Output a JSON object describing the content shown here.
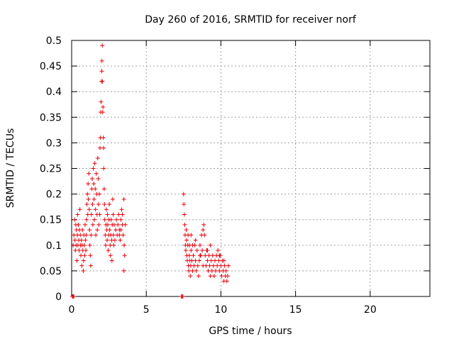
{
  "chart_data": {
    "type": "scatter",
    "title": "Day 260 of 2016, SRMTID for receiver norf",
    "xlabel": "GPS time / hours",
    "ylabel": "SRMTID / TECUs",
    "xlim": [
      0,
      24
    ],
    "ylim": [
      0,
      0.5
    ],
    "xticks": [
      0,
      5,
      10,
      15,
      20
    ],
    "xtick_labels": [
      "0",
      "5",
      "10",
      "15",
      "20"
    ],
    "yticks": [
      0,
      0.05,
      0.1,
      0.15,
      0.2,
      0.25,
      0.3,
      0.35,
      0.4,
      0.45,
      0.5
    ],
    "ytick_labels": [
      "0",
      "0.05",
      "0.1",
      "0.15",
      "0.2",
      "0.25",
      "0.3",
      "0.35",
      "0.4",
      "0.45",
      "0.5"
    ],
    "grid": true,
    "marker": "+",
    "series": [
      {
        "color": "#e8000b",
        "points": [
          [
            0.05,
            0.0
          ],
          [
            0.1,
            0.0
          ],
          [
            0.15,
            0.0
          ],
          [
            0.1,
            0.1
          ],
          [
            0.15,
            0.12
          ],
          [
            0.2,
            0.15
          ],
          [
            0.22,
            0.11
          ],
          [
            0.25,
            0.09
          ],
          [
            0.28,
            0.14
          ],
          [
            0.3,
            0.1
          ],
          [
            0.32,
            0.13
          ],
          [
            0.35,
            0.07
          ],
          [
            0.38,
            0.12
          ],
          [
            0.4,
            0.16
          ],
          [
            0.42,
            0.1
          ],
          [
            0.45,
            0.14
          ],
          [
            0.48,
            0.11
          ],
          [
            0.5,
            0.09
          ],
          [
            0.52,
            0.13
          ],
          [
            0.55,
            0.17
          ],
          [
            0.58,
            0.12
          ],
          [
            0.6,
            0.1
          ],
          [
            0.62,
            0.08
          ],
          [
            0.65,
            0.11
          ],
          [
            0.68,
            0.06
          ],
          [
            0.7,
            0.1
          ],
          [
            0.72,
            0.13
          ],
          [
            0.75,
            0.09
          ],
          [
            0.78,
            0.05
          ],
          [
            0.8,
            0.07
          ],
          [
            0.82,
            0.12
          ],
          [
            0.85,
            0.1
          ],
          [
            0.88,
            0.08
          ],
          [
            0.9,
            0.14
          ],
          [
            0.92,
            0.11
          ],
          [
            0.95,
            0.09
          ],
          [
            0.98,
            0.12
          ],
          [
            1.0,
            0.15
          ],
          [
            1.02,
            0.18
          ],
          [
            1.05,
            0.2
          ],
          [
            1.08,
            0.16
          ],
          [
            1.1,
            0.22
          ],
          [
            1.12,
            0.19
          ],
          [
            1.15,
            0.24
          ],
          [
            1.18,
            0.17
          ],
          [
            1.2,
            0.13
          ],
          [
            1.22,
            0.1
          ],
          [
            1.25,
            0.08
          ],
          [
            1.28,
            0.06
          ],
          [
            1.3,
            0.12
          ],
          [
            1.32,
            0.16
          ],
          [
            1.35,
            0.21
          ],
          [
            1.38,
            0.23
          ],
          [
            1.4,
            0.18
          ],
          [
            1.42,
            0.14
          ],
          [
            1.45,
            0.25
          ],
          [
            1.48,
            0.22
          ],
          [
            1.5,
            0.19
          ],
          [
            1.52,
            0.15
          ],
          [
            1.55,
            0.26
          ],
          [
            1.58,
            0.21
          ],
          [
            1.6,
            0.17
          ],
          [
            1.62,
            0.12
          ],
          [
            1.65,
            0.24
          ],
          [
            1.68,
            0.2
          ],
          [
            1.7,
            0.16
          ],
          [
            1.72,
            0.13
          ],
          [
            1.75,
            0.27
          ],
          [
            1.78,
            0.23
          ],
          [
            1.8,
            0.18
          ],
          [
            1.82,
            0.14
          ],
          [
            1.85,
            0.2
          ],
          [
            1.88,
            0.16
          ],
          [
            1.9,
            0.29
          ],
          [
            1.92,
            0.31
          ],
          [
            1.95,
            0.36
          ],
          [
            1.97,
            0.38
          ],
          [
            2.0,
            0.42
          ],
          [
            2.02,
            0.44
          ],
          [
            2.03,
            0.46
          ],
          [
            2.05,
            0.49
          ],
          [
            2.06,
            0.42
          ],
          [
            2.08,
            0.36
          ],
          [
            2.1,
            0.37
          ],
          [
            2.12,
            0.31
          ],
          [
            2.14,
            0.29
          ],
          [
            2.15,
            0.25
          ],
          [
            2.18,
            0.21
          ],
          [
            2.2,
            0.18
          ],
          [
            2.22,
            0.15
          ],
          [
            2.25,
            0.12
          ],
          [
            2.28,
            0.1
          ],
          [
            2.3,
            0.14
          ],
          [
            2.32,
            0.17
          ],
          [
            2.35,
            0.13
          ],
          [
            2.38,
            0.11
          ],
          [
            2.4,
            0.16
          ],
          [
            2.42,
            0.14
          ],
          [
            2.45,
            0.09
          ],
          [
            2.48,
            0.12
          ],
          [
            2.5,
            0.15
          ],
          [
            2.52,
            0.18
          ],
          [
            2.55,
            0.13
          ],
          [
            2.58,
            0.1
          ],
          [
            2.6,
            0.08
          ],
          [
            2.62,
            0.12
          ],
          [
            2.65,
            0.15
          ],
          [
            2.68,
            0.11
          ],
          [
            2.7,
            0.07
          ],
          [
            2.72,
            0.14
          ],
          [
            2.75,
            0.19
          ],
          [
            2.78,
            0.16
          ],
          [
            2.8,
            0.12
          ],
          [
            2.82,
            0.1
          ],
          [
            2.85,
            0.14
          ],
          [
            2.9,
            0.11
          ],
          [
            2.95,
            0.13
          ],
          [
            3.0,
            0.15
          ],
          [
            3.05,
            0.12
          ],
          [
            3.1,
            0.14
          ],
          [
            3.15,
            0.16
          ],
          [
            3.2,
            0.13
          ],
          [
            3.25,
            0.11
          ],
          [
            3.3,
            0.15
          ],
          [
            3.35,
            0.17
          ],
          [
            3.4,
            0.14
          ],
          [
            3.45,
            0.12
          ],
          [
            3.5,
            0.19
          ],
          [
            3.52,
            0.1
          ],
          [
            3.55,
            0.08
          ],
          [
            3.5,
            0.05
          ],
          [
            3.6,
            0.14
          ],
          [
            3.4,
            0.16
          ],
          [
            3.3,
            0.13
          ],
          [
            3.2,
            0.12
          ],
          [
            7.35,
            0.0
          ],
          [
            7.4,
            0.0
          ],
          [
            7.45,
            0.0
          ],
          [
            7.5,
            0.2
          ],
          [
            7.52,
            0.18
          ],
          [
            7.55,
            0.16
          ],
          [
            7.58,
            0.14
          ],
          [
            7.6,
            0.12
          ],
          [
            7.62,
            0.1
          ],
          [
            7.65,
            0.09
          ],
          [
            7.68,
            0.13
          ],
          [
            7.7,
            0.11
          ],
          [
            7.72,
            0.08
          ],
          [
            7.75,
            0.07
          ],
          [
            7.78,
            0.1
          ],
          [
            7.8,
            0.12
          ],
          [
            7.82,
            0.06
          ],
          [
            7.85,
            0.05
          ],
          [
            7.88,
            0.08
          ],
          [
            7.9,
            0.1
          ],
          [
            7.92,
            0.07
          ],
          [
            7.95,
            0.04
          ],
          [
            7.98,
            0.06
          ],
          [
            8.0,
            0.09
          ],
          [
            8.05,
            0.07
          ],
          [
            8.1,
            0.05
          ],
          [
            8.15,
            0.08
          ],
          [
            8.2,
            0.06
          ],
          [
            8.25,
            0.1
          ],
          [
            8.3,
            0.07
          ],
          [
            8.35,
            0.05
          ],
          [
            8.4,
            0.09
          ],
          [
            8.45,
            0.06
          ],
          [
            8.5,
            0.04
          ],
          [
            8.55,
            0.07
          ],
          [
            8.6,
            0.1
          ],
          [
            8.65,
            0.08
          ],
          [
            8.7,
            0.12
          ],
          [
            8.75,
            0.09
          ],
          [
            8.8,
            0.06
          ],
          [
            8.85,
            0.14
          ],
          [
            8.9,
            0.12
          ],
          [
            8.95,
            0.08
          ],
          [
            9.0,
            0.06
          ],
          [
            9.05,
            0.09
          ],
          [
            9.1,
            0.07
          ],
          [
            9.15,
            0.05
          ],
          [
            9.2,
            0.08
          ],
          [
            9.25,
            0.06
          ],
          [
            9.3,
            0.04
          ],
          [
            9.35,
            0.07
          ],
          [
            9.4,
            0.05
          ],
          [
            9.45,
            0.08
          ],
          [
            9.5,
            0.06
          ],
          [
            9.55,
            0.04
          ],
          [
            9.6,
            0.07
          ],
          [
            9.65,
            0.05
          ],
          [
            9.7,
            0.08
          ],
          [
            9.75,
            0.06
          ],
          [
            9.8,
            0.09
          ],
          [
            9.85,
            0.07
          ],
          [
            9.9,
            0.05
          ],
          [
            9.95,
            0.08
          ],
          [
            10.0,
            0.06
          ],
          [
            10.05,
            0.04
          ],
          [
            10.1,
            0.07
          ],
          [
            10.15,
            0.05
          ],
          [
            10.2,
            0.03
          ],
          [
            10.25,
            0.06
          ],
          [
            10.3,
            0.04
          ],
          [
            10.35,
            0.05
          ],
          [
            10.4,
            0.03
          ],
          [
            10.45,
            0.04
          ],
          [
            10.5,
            0.06
          ],
          [
            8.0,
            0.12
          ],
          [
            8.1,
            0.1
          ],
          [
            8.3,
            0.11
          ],
          [
            8.6,
            0.08
          ],
          [
            8.8,
            0.13
          ],
          [
            9.1,
            0.09
          ],
          [
            9.3,
            0.1
          ],
          [
            9.6,
            0.07
          ],
          [
            9.9,
            0.08
          ],
          [
            10.2,
            0.07
          ]
        ]
      }
    ]
  }
}
